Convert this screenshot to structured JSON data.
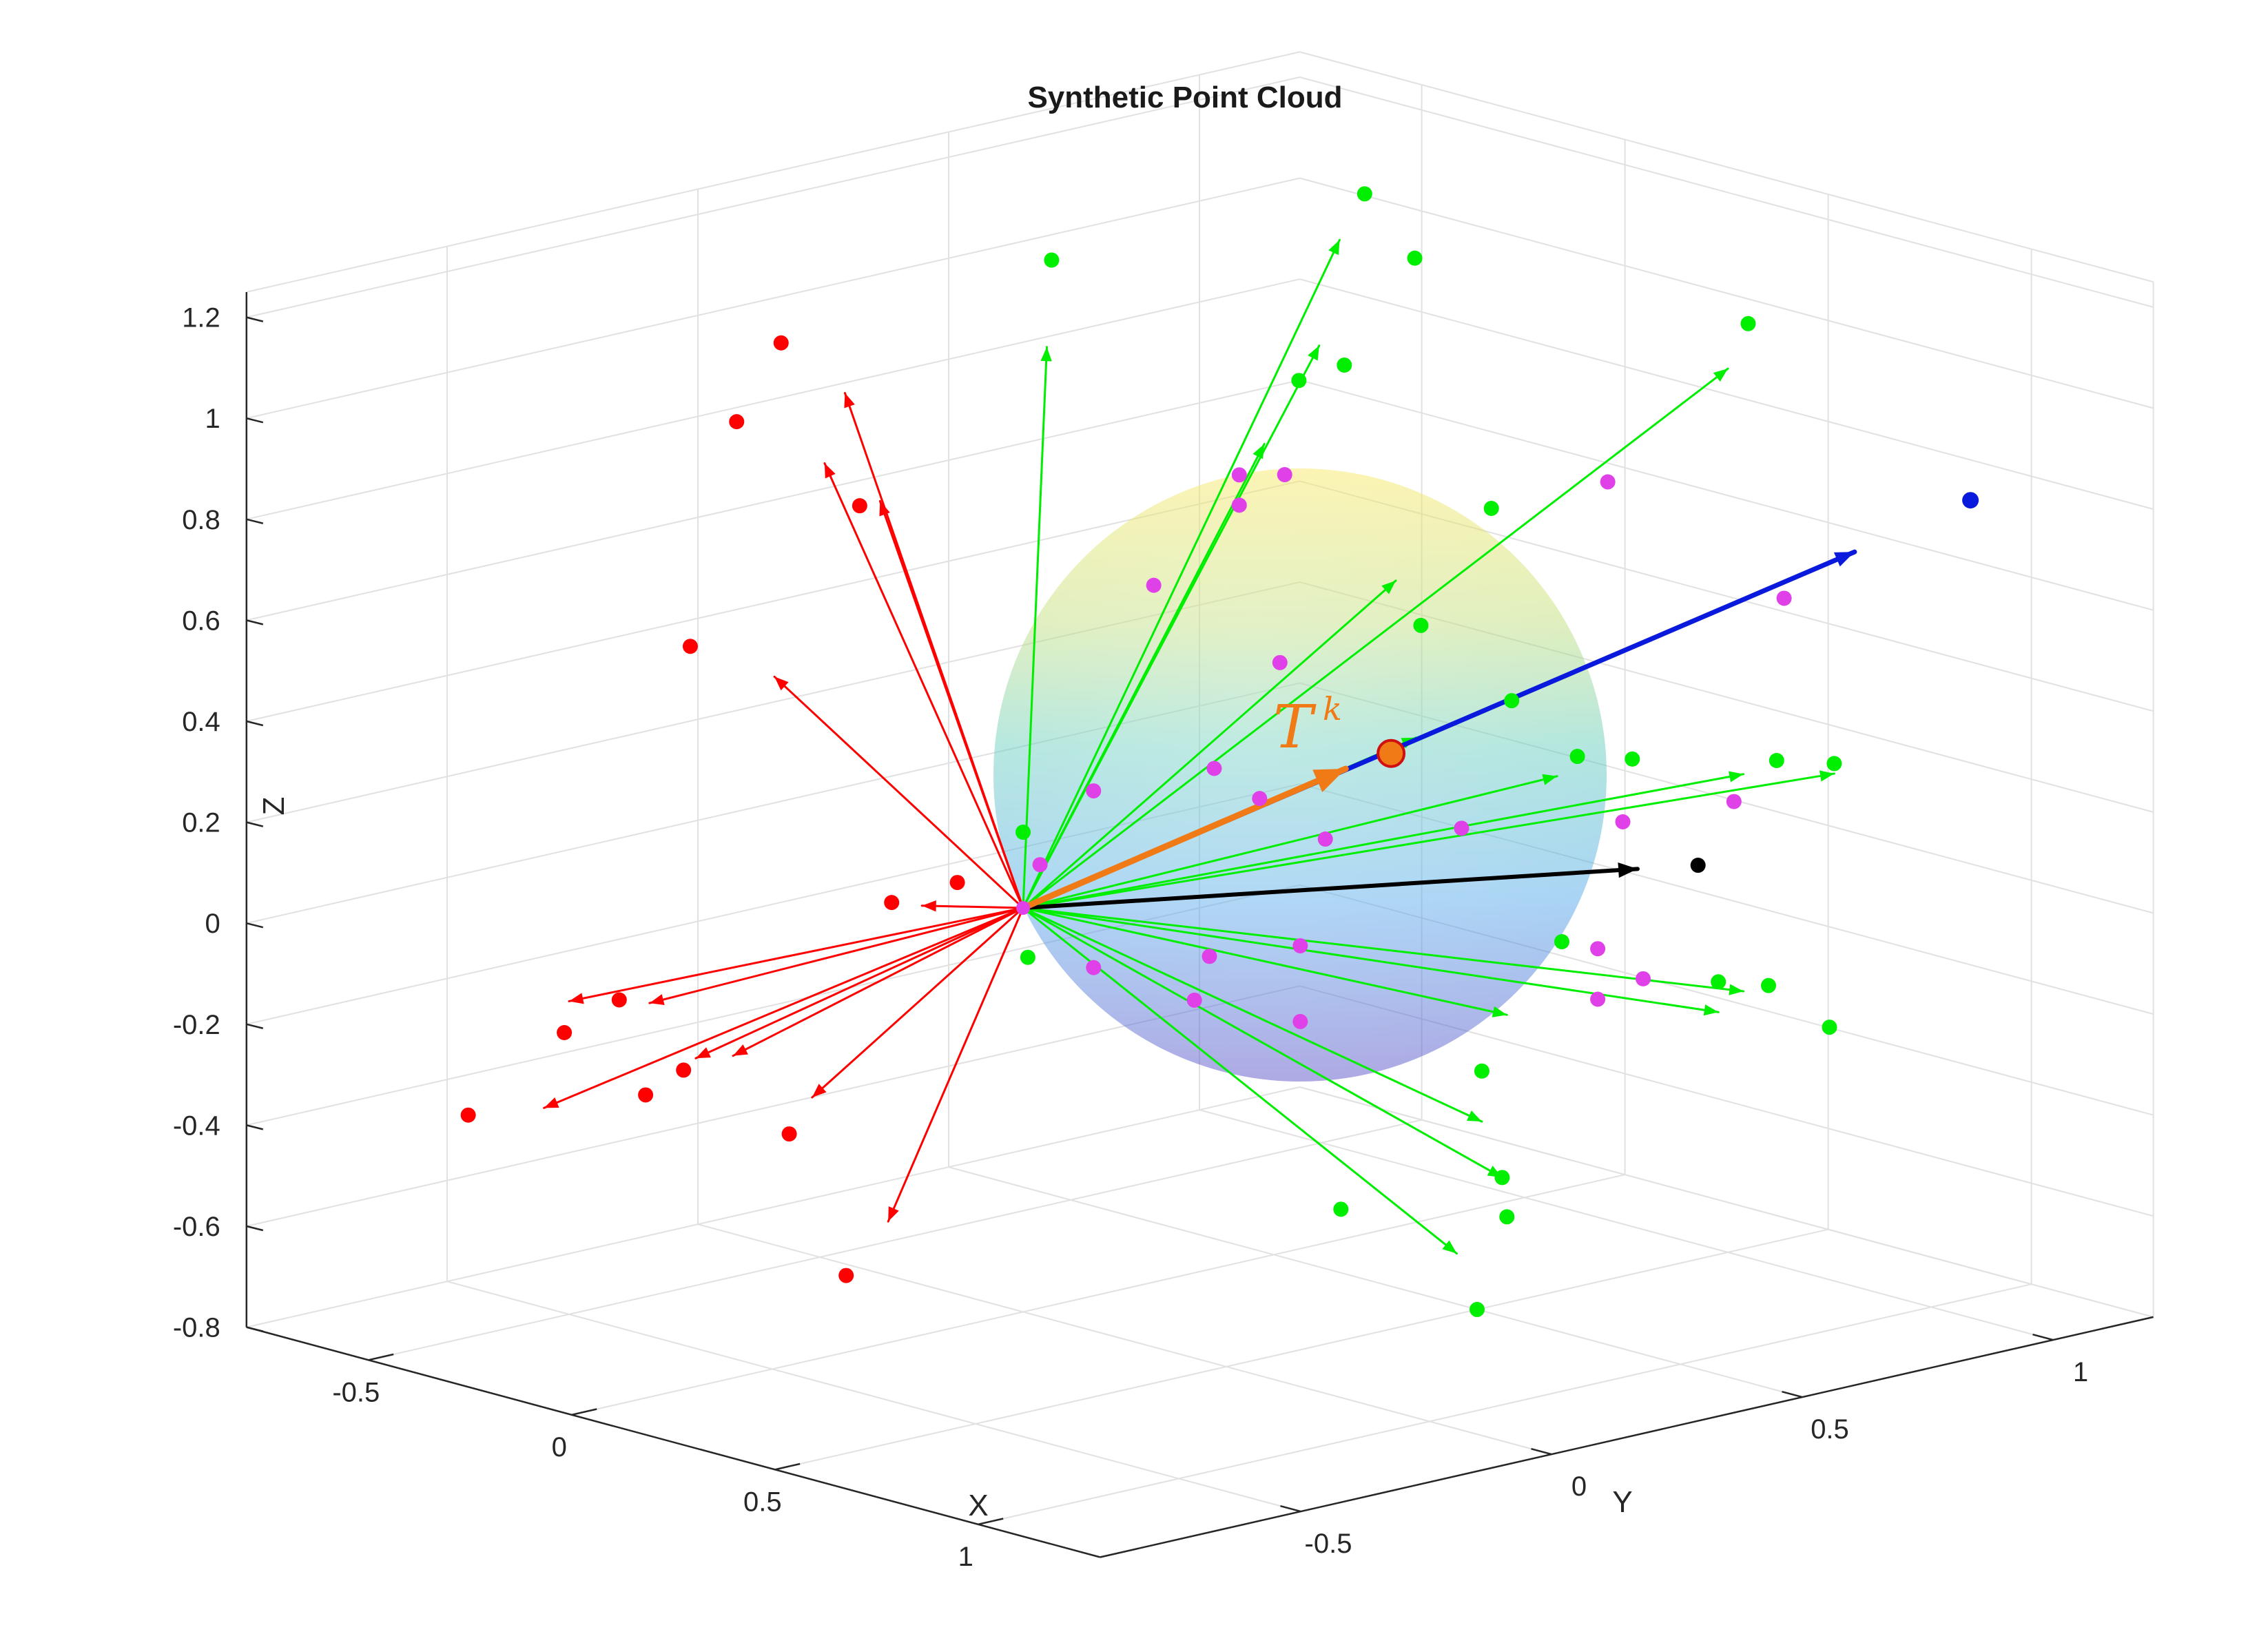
{
  "chart_data": {
    "type": "scatter",
    "title": "Synthetic Point Cloud",
    "xlabel": "X",
    "ylabel": "Y",
    "zlabel": "Z",
    "xlim": [
      -0.8,
      1.3
    ],
    "ylim": [
      -0.9,
      1.2
    ],
    "zlim": [
      -0.8,
      1.25
    ],
    "x_ticks": [
      "-0.5",
      "0",
      "0.5",
      "1"
    ],
    "y_ticks": [
      "-0.5",
      "0",
      "0.5",
      "1"
    ],
    "z_ticks": [
      "-0.8",
      "-0.6",
      "-0.4",
      "-0.2",
      "0",
      "0.2",
      "0.4",
      "0.6",
      "0.8",
      "1",
      "1.2"
    ],
    "grid": true,
    "view": "3d",
    "origin": [
      0,
      0,
      0
    ],
    "sphere": {
      "center": [
        0.55,
        0.35,
        0.25
      ],
      "radius": 0.65,
      "colormap": "parula",
      "alpha": 0.4
    },
    "annotation": {
      "text_main": "T",
      "text_sup": "k",
      "color": "#f07a16"
    },
    "colors": {
      "outlier": "#ff0000",
      "inlier": "#00ee00",
      "on_sphere": "#e040e8",
      "direction": "#0a1adc",
      "reference": "#000000",
      "estimate": "#f07a16"
    },
    "series": [
      {
        "role": "outlier",
        "points": [
          [
            -0.62,
            0.02,
            0.98
          ],
          [
            -0.55,
            0.12,
            0.65
          ],
          [
            -0.68,
            -0.02,
            0.82
          ],
          [
            -0.72,
            -0.08,
            0.38
          ],
          [
            -0.45,
            -0.55,
            -0.22
          ],
          [
            -0.5,
            -0.4,
            -0.2
          ],
          [
            -0.6,
            -0.62,
            -0.4
          ],
          [
            -0.25,
            -0.55,
            -0.3
          ],
          [
            -0.28,
            -0.45,
            -0.28
          ],
          [
            -0.02,
            -0.45,
            -0.35
          ],
          [
            -0.2,
            -0.1,
            -0.01
          ],
          [
            -0.1,
            -0.05,
            0.04
          ],
          [
            0.12,
            -0.45,
            -0.6
          ]
        ]
      },
      {
        "role": "inlier",
        "points": [
          [
            -0.3,
            0.3,
            1.15
          ],
          [
            0.1,
            0.6,
            1.3
          ],
          [
            0.1,
            0.7,
            1.15
          ],
          [
            0.0,
            0.55,
            0.92
          ],
          [
            0.05,
            0.6,
            0.95
          ],
          [
            0.55,
            1.0,
            1.05
          ],
          [
            0.35,
            0.65,
            0.72
          ],
          [
            0.3,
            0.55,
            0.5
          ],
          [
            0.4,
            0.65,
            0.35
          ],
          [
            0.5,
            0.7,
            0.25
          ],
          [
            0.45,
            0.85,
            0.2
          ],
          [
            0.62,
            1.0,
            0.2
          ],
          [
            0.7,
            1.05,
            0.2
          ],
          [
            0.0,
            0.0,
            0.15
          ],
          [
            -0.05,
            0.05,
            -0.12
          ],
          [
            0.4,
            0.75,
            -0.15
          ],
          [
            0.6,
            0.9,
            -0.22
          ],
          [
            0.6,
            1.0,
            -0.25
          ],
          [
            0.75,
            1.0,
            -0.3
          ],
          [
            0.45,
            0.55,
            -0.35
          ],
          [
            0.5,
            0.55,
            -0.55
          ],
          [
            0.45,
            0.6,
            -0.65
          ],
          [
            0.35,
            0.35,
            -0.6
          ],
          [
            0.5,
            0.5,
            -0.8
          ]
        ]
      },
      {
        "role": "on_sphere",
        "points": [
          [
            0.1,
            0.35,
            0.8
          ],
          [
            0.15,
            0.4,
            0.8
          ],
          [
            0.1,
            0.35,
            0.74
          ],
          [
            0.05,
            0.22,
            0.6
          ],
          [
            0.55,
            0.72,
            0.8
          ],
          [
            0.2,
            0.35,
            0.45
          ],
          [
            0.7,
            0.95,
            0.55
          ],
          [
            0.1,
            0.3,
            0.23
          ],
          [
            0.05,
            0.1,
            0.22
          ],
          [
            -0.02,
            0.05,
            0.07
          ],
          [
            0.15,
            0.35,
            0.17
          ],
          [
            0.25,
            0.4,
            0.1
          ],
          [
            0.4,
            0.55,
            0.12
          ],
          [
            0.55,
            0.75,
            0.12
          ],
          [
            0.7,
            0.85,
            0.17
          ],
          [
            0.15,
            0.25,
            -0.12
          ],
          [
            0.25,
            0.35,
            -0.1
          ],
          [
            0.05,
            0.1,
            -0.13
          ],
          [
            0.15,
            0.22,
            -0.2
          ],
          [
            0.25,
            0.35,
            -0.25
          ],
          [
            0.55,
            0.7,
            -0.12
          ],
          [
            0.6,
            0.75,
            -0.18
          ],
          [
            0.55,
            0.7,
            -0.22
          ]
        ]
      },
      {
        "role": "direction",
        "points": [
          [
            0.85,
            1.2,
            0.72
          ]
        ]
      },
      {
        "role": "reference",
        "points": [
          [
            0.55,
            0.9,
            0.0
          ]
        ]
      },
      {
        "role": "estimate",
        "points": [
          [
            0.35,
            0.45,
            0.28
          ]
        ]
      }
    ],
    "vectors": [
      {
        "role": "outlier",
        "tips": [
          [
            -0.5,
            0.05,
            0.9
          ],
          [
            -0.55,
            0.05,
            0.75
          ],
          [
            -0.5,
            0.12,
            0.67
          ],
          [
            -0.55,
            -0.05,
            0.35
          ],
          [
            -0.5,
            -0.5,
            -0.18
          ],
          [
            -0.45,
            -0.38,
            -0.2
          ],
          [
            -0.5,
            -0.55,
            -0.38
          ],
          [
            -0.25,
            -0.45,
            -0.25
          ],
          [
            -0.22,
            -0.4,
            -0.25
          ],
          [
            -0.05,
            -0.38,
            -0.3
          ],
          [
            -0.15,
            -0.08,
            -0.01
          ],
          [
            0.1,
            -0.35,
            -0.52
          ]
        ]
      },
      {
        "role": "inlier",
        "tips": [
          [
            -0.25,
            0.25,
            1.0
          ],
          [
            0.1,
            0.55,
            1.22
          ],
          [
            0.05,
            0.55,
            1.0
          ],
          [
            0.1,
            0.4,
            0.85
          ],
          [
            0.5,
            1.0,
            0.95
          ],
          [
            0.3,
            0.5,
            0.6
          ],
          [
            0.35,
            0.5,
            0.3
          ],
          [
            0.45,
            0.7,
            0.2
          ],
          [
            0.6,
            0.95,
            0.18
          ],
          [
            0.7,
            1.05,
            0.18
          ],
          [
            0.45,
            0.6,
            -0.25
          ],
          [
            0.6,
            0.95,
            -0.25
          ],
          [
            0.6,
            0.9,
            -0.28
          ],
          [
            0.45,
            0.55,
            -0.45
          ],
          [
            0.5,
            0.55,
            -0.55
          ],
          [
            0.45,
            0.5,
            -0.7
          ]
        ]
      },
      {
        "role": "direction",
        "tips": [
          [
            0.75,
            1.05,
            0.63
          ]
        ]
      },
      {
        "role": "reference",
        "tips": [
          [
            0.5,
            0.82,
            0.0
          ]
        ]
      },
      {
        "role": "estimate",
        "tips": [
          [
            0.3,
            0.4,
            0.25
          ]
        ]
      }
    ]
  }
}
